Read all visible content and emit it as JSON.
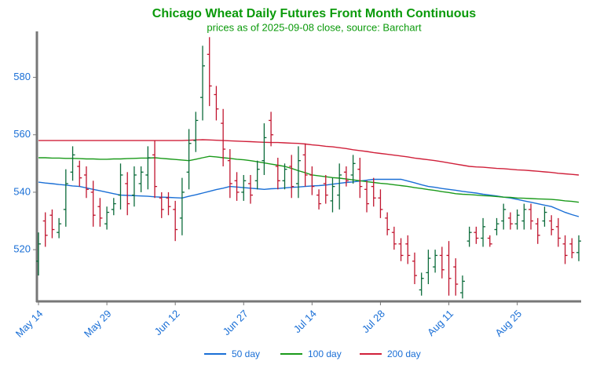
{
  "chart_data": {
    "type": "ohlc",
    "title": "Chicago Wheat Daily Futures Front Month Continuous",
    "subtitle": "prices as of 2025-09-08 close, source: Barchart",
    "categories": [
      "May 14",
      null,
      null,
      null,
      null,
      null,
      null,
      null,
      null,
      null,
      "May 29",
      null,
      null,
      null,
      null,
      null,
      null,
      null,
      null,
      null,
      "Jun 12",
      null,
      null,
      null,
      null,
      null,
      null,
      null,
      null,
      null,
      "Jun 27",
      null,
      null,
      null,
      null,
      null,
      null,
      null,
      null,
      null,
      "Jul 14",
      null,
      null,
      null,
      null,
      null,
      null,
      null,
      null,
      null,
      "Jul 28",
      null,
      null,
      null,
      null,
      null,
      null,
      null,
      null,
      null,
      "Aug 11",
      null,
      null,
      null,
      null,
      null,
      null,
      null,
      null,
      null,
      "Aug 25",
      null,
      null,
      null,
      null,
      null,
      null,
      null,
      null,
      null
    ],
    "open": [
      516,
      530,
      532,
      526,
      534,
      547,
      549,
      546,
      540,
      535,
      529,
      534,
      539,
      543,
      539,
      543,
      546,
      553,
      538,
      538,
      534,
      531,
      547,
      558,
      573,
      588,
      574,
      564,
      551,
      544,
      540,
      543,
      544,
      551,
      565,
      549,
      544,
      549,
      543,
      553,
      546,
      539,
      543,
      537,
      539,
      547,
      546,
      548,
      541,
      542,
      538,
      531,
      526,
      522,
      522,
      516,
      506,
      512,
      514,
      518,
      518,
      514,
      505,
      523,
      526,
      524,
      524,
      527,
      530,
      531,
      529,
      530,
      534,
      529,
      530,
      530,
      528,
      522,
      522,
      519
    ],
    "high": [
      526,
      533,
      534,
      531,
      548,
      556,
      551,
      549,
      544,
      538,
      535,
      538,
      550,
      547,
      549,
      549,
      556,
      558,
      540,
      540,
      537,
      545,
      562,
      568,
      591,
      594,
      577,
      569,
      555,
      547,
      546,
      546,
      551,
      564,
      568,
      552,
      550,
      553,
      556,
      557,
      549,
      541,
      546,
      545,
      550,
      549,
      553,
      552,
      544,
      545,
      541,
      533,
      528,
      524,
      525,
      519,
      512,
      520,
      520,
      521,
      523,
      517,
      511,
      528,
      528,
      531,
      525,
      531,
      536,
      533,
      534,
      536,
      536,
      531,
      535,
      532,
      531,
      525,
      524,
      525
    ],
    "low": [
      511,
      521,
      524,
      524,
      528,
      544,
      542,
      538,
      528,
      528,
      527,
      532,
      534,
      532,
      535,
      540,
      541,
      538,
      531,
      532,
      523,
      525,
      541,
      554,
      565,
      570,
      565,
      549,
      538,
      537,
      537,
      536,
      541,
      546,
      556,
      541,
      541,
      538,
      538,
      542,
      539,
      534,
      536,
      533,
      534,
      542,
      543,
      538,
      533,
      535,
      531,
      525,
      520,
      516,
      515,
      508,
      504,
      508,
      512,
      510,
      504,
      504,
      503,
      521,
      522,
      521,
      521,
      525,
      527,
      527,
      527,
      527,
      527,
      522,
      528,
      525,
      521,
      515,
      517,
      516
    ],
    "close": [
      522,
      525,
      527,
      529,
      543,
      553,
      545,
      541,
      532,
      531,
      533,
      536,
      546,
      536,
      546,
      547,
      552,
      542,
      534,
      535,
      527,
      540,
      557,
      565,
      584,
      577,
      569,
      555,
      543,
      540,
      544,
      539,
      548,
      559,
      560,
      544,
      548,
      542,
      551,
      546,
      542,
      536,
      539,
      542,
      546,
      544,
      550,
      542,
      536,
      538,
      534,
      527,
      522,
      518,
      518,
      511,
      510,
      517,
      518,
      513,
      510,
      508,
      509,
      526,
      524,
      528,
      522,
      529,
      534,
      529,
      532,
      534,
      530,
      525,
      533,
      527,
      524,
      518,
      519,
      523
    ],
    "up_color": "#0b6b3a",
    "down_color": "#c0142e",
    "series": [
      {
        "name": "50 day",
        "color": "#1a6fd6",
        "values": [
          543.5,
          543.2,
          543,
          542.7,
          542.5,
          542.2,
          542,
          541.5,
          541,
          540.5,
          540,
          539.5,
          539,
          538.9,
          538.8,
          538.7,
          538.6,
          538.4,
          538.3,
          538.2,
          538.1,
          538,
          538.6,
          539.1,
          539.7,
          540.3,
          540.9,
          541.4,
          542,
          541.8,
          541.6,
          541.4,
          541.2,
          541,
          541.2,
          541.3,
          541.5,
          541.7,
          541.8,
          542,
          542.2,
          542.3,
          542.5,
          542.8,
          543.1,
          543.4,
          543.6,
          543.9,
          544.2,
          544.5,
          544.5,
          544.5,
          544.5,
          544.5,
          543.9,
          543.3,
          542.6,
          542,
          541.7,
          541.3,
          541,
          540.7,
          540.3,
          540,
          539.7,
          539.3,
          539,
          538.7,
          538.3,
          538,
          537.5,
          537,
          536.5,
          536,
          535.5,
          535,
          534,
          533,
          532.2,
          531.5
        ]
      },
      {
        "name": "100 day",
        "color": "#1a9a1a",
        "values": [
          552,
          552,
          551.9,
          551.9,
          551.8,
          551.8,
          551.7,
          551.6,
          551.6,
          551.5,
          551.5,
          551.6,
          551.6,
          551.7,
          551.8,
          551.9,
          551.9,
          552,
          551.8,
          551.6,
          551.4,
          551.2,
          551,
          551.5,
          552,
          552.5,
          552.3,
          552,
          551.8,
          551.5,
          551.3,
          551,
          550.6,
          550.2,
          549.8,
          549.4,
          549,
          548.3,
          547.5,
          546.8,
          546,
          545.7,
          545.4,
          545.1,
          544.9,
          544.6,
          544.3,
          544,
          543.7,
          543.4,
          543.1,
          542.9,
          542.6,
          542.3,
          542,
          541.6,
          541.3,
          540.9,
          540.6,
          540.2,
          539.9,
          539.5,
          539.3,
          539.2,
          539,
          538.8,
          538.7,
          538.5,
          538.3,
          538.2,
          538,
          537.9,
          537.8,
          537.7,
          537.6,
          537.5,
          537.3,
          537,
          536.8,
          536.5
        ]
      },
      {
        "name": "200 day",
        "color": "#d0203a",
        "values": [
          558,
          558,
          558,
          558,
          558,
          558,
          558,
          558,
          558,
          558,
          558,
          558,
          558,
          558,
          558,
          558,
          558,
          558,
          558,
          558,
          558,
          558,
          558.1,
          558.2,
          558.3,
          558.2,
          558.1,
          558,
          557.9,
          557.8,
          557.7,
          557.6,
          557.5,
          557.4,
          557.3,
          557.3,
          557.2,
          557.1,
          557,
          556.8,
          556.5,
          556.3,
          556,
          555.8,
          555.5,
          555.2,
          554.8,
          554.5,
          554.2,
          553.8,
          553.5,
          553.2,
          552.9,
          552.6,
          552.3,
          551.9,
          551.6,
          551.3,
          551,
          550.6,
          550.2,
          549.8,
          549.4,
          549,
          548.8,
          548.7,
          548.5,
          548.3,
          548.2,
          548,
          547.8,
          547.7,
          547.5,
          547.3,
          547.1,
          546.9,
          546.6,
          546.4,
          546.2,
          546
        ]
      }
    ],
    "ylim": [
      502,
      596
    ],
    "yticks": [
      520,
      540,
      560,
      580
    ],
    "title_color": "#0a9a0a"
  }
}
